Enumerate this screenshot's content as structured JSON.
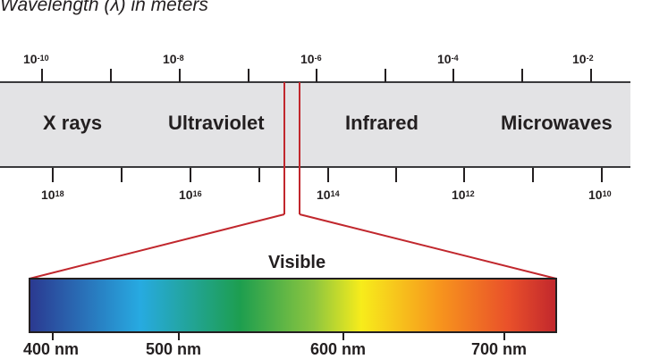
{
  "title": "Wavelength (λ) in meters",
  "wavelength_labels": [
    {
      "base": "10",
      "exp": "-10"
    },
    {
      "base": "10",
      "exp": "-8"
    },
    {
      "base": "10",
      "exp": "-6"
    },
    {
      "base": "10",
      "exp": "-4"
    },
    {
      "base": "10",
      "exp": "-2"
    }
  ],
  "frequency_labels": [
    {
      "base": "10",
      "exp": "18"
    },
    {
      "base": "10",
      "exp": "16"
    },
    {
      "base": "10",
      "exp": "14"
    },
    {
      "base": "10",
      "exp": "12"
    },
    {
      "base": "10",
      "exp": "10"
    }
  ],
  "regions": [
    "X rays",
    "Ultraviolet",
    "Infrared",
    "Microwaves"
  ],
  "visible": {
    "title": "Visible",
    "nm_labels": [
      "400 nm",
      "500 nm",
      "600 nm",
      "700 nm"
    ],
    "gradient_colors": [
      "#2b3990",
      "#27aae1",
      "#1d9e4f",
      "#8dc63f",
      "#f7ec1b",
      "#f7941d",
      "#e9502a",
      "#c1272d"
    ]
  },
  "colors": {
    "band": "#e3e3e5",
    "bracket": "#c1272d",
    "text": "#231f20"
  }
}
